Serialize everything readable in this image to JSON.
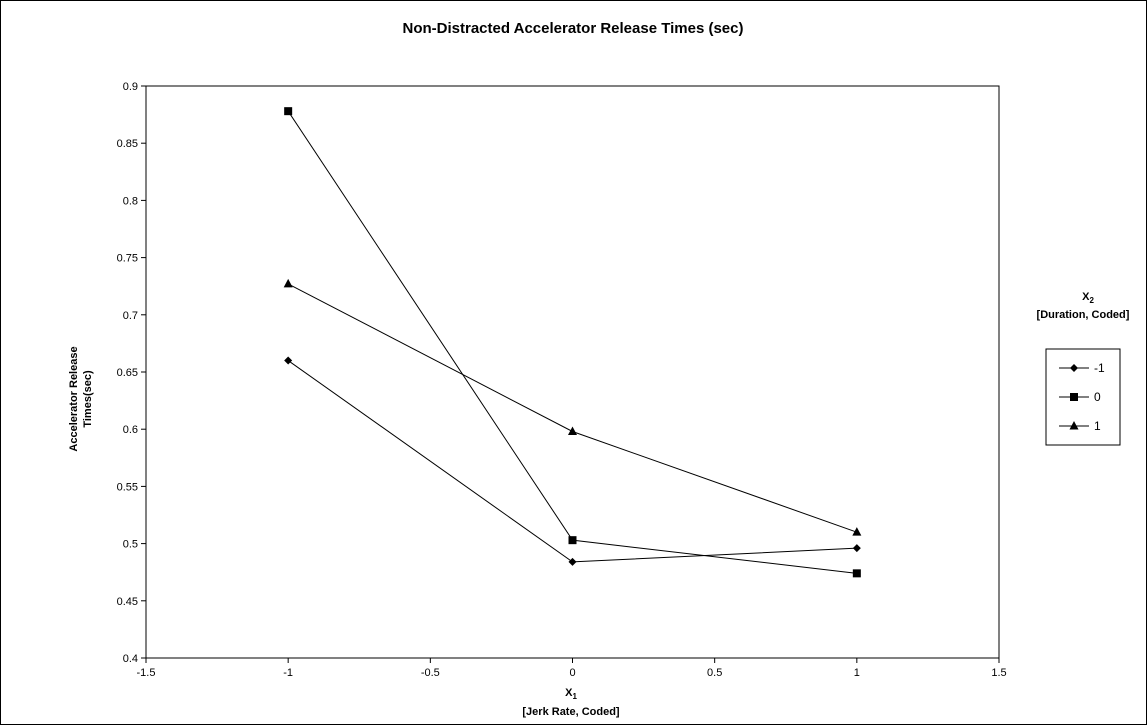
{
  "chart_data": {
    "type": "line",
    "title": "Non-Distracted Accelerator Release Times (sec)",
    "xlabel_main": "X",
    "xlabel_sub": "1",
    "xlabel_detail": "[Jerk Rate, Coded]",
    "ylabel_line1": "Accelerator Release",
    "ylabel_line2": "Times(sec)",
    "legend_title_main": "X",
    "legend_title_sub": "2",
    "legend_title_detail": "[Duration, Coded]",
    "legend_position": "right",
    "grid": false,
    "xlim": [
      -1.5,
      1.5
    ],
    "ylim": [
      0.4,
      0.9
    ],
    "xticks": [
      -1.5,
      -1,
      -0.5,
      0,
      0.5,
      1,
      1.5
    ],
    "xtick_labels": [
      "-1.5",
      "-1",
      "-0.5",
      "0",
      "0.5",
      "1",
      "1.5"
    ],
    "yticks": [
      0.4,
      0.45,
      0.5,
      0.55,
      0.6,
      0.65,
      0.7,
      0.75,
      0.8,
      0.85,
      0.9
    ],
    "ytick_labels": [
      "0.4",
      "0.45",
      "0.5",
      "0.55",
      "0.6",
      "0.65",
      "0.7",
      "0.75",
      "0.8",
      "0.85",
      "0.9"
    ],
    "x": [
      -1,
      0,
      1
    ],
    "series": [
      {
        "name": "-1",
        "marker": "diamond",
        "values": [
          0.66,
          0.484,
          0.496
        ]
      },
      {
        "name": "0",
        "marker": "square",
        "values": [
          0.878,
          0.503,
          0.474
        ]
      },
      {
        "name": "1",
        "marker": "triangle",
        "values": [
          0.727,
          0.598,
          0.51
        ]
      }
    ],
    "line_color": "#000000"
  }
}
